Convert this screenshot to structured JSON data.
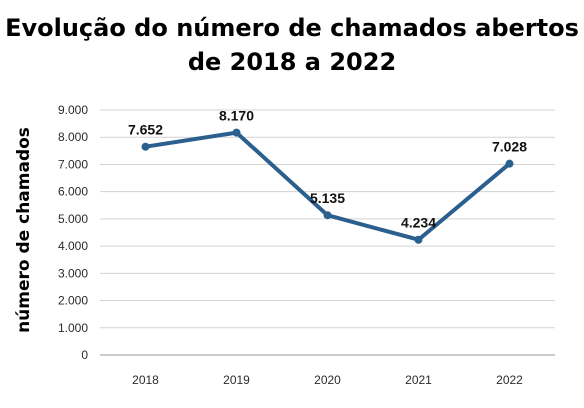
{
  "chart_data": {
    "type": "line",
    "title_lines": [
      "Evolução do número de chamados abertos",
      "de 2018 a 2022"
    ],
    "ylabel": "número de chamados",
    "xlabel": "",
    "categories": [
      "2018",
      "2019",
      "2020",
      "2021",
      "2022"
    ],
    "values": [
      7652,
      8170,
      5135,
      4234,
      7028
    ],
    "data_labels": [
      "7.652",
      "8.170",
      "5.135",
      "4.234",
      "7.028"
    ],
    "yticks": [
      0,
      1000,
      2000,
      3000,
      4000,
      5000,
      6000,
      7000,
      8000,
      9000
    ],
    "ytick_labels": [
      "0",
      "1.000",
      "2.000",
      "3.000",
      "4.000",
      "5.000",
      "6.000",
      "7.000",
      "8.000",
      "9.000"
    ],
    "ylim": [
      0,
      9000
    ],
    "grid": true,
    "legend": "none",
    "colors": {
      "line": "#2b5f8e",
      "marker": "#2b5f8e"
    }
  }
}
